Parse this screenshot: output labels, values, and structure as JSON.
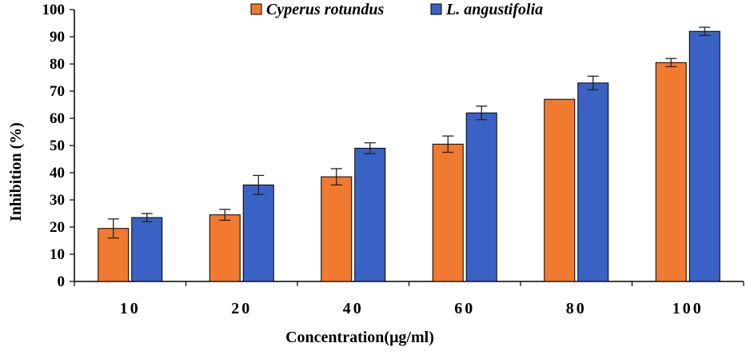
{
  "chart_data": {
    "type": "bar",
    "title": "",
    "xlabel": "Concentration(μg/ml)",
    "ylabel": "Inhibition  (%)",
    "ylim": [
      0,
      100
    ],
    "yticks": [
      0,
      10,
      20,
      30,
      40,
      50,
      60,
      70,
      80,
      90,
      100
    ],
    "categories": [
      "10",
      "20",
      "40",
      "60",
      "80",
      "100"
    ],
    "grid": false,
    "legend_position": "top",
    "series": [
      {
        "name": "Cyperus rotundus",
        "color": "#f07a30",
        "values": [
          19.5,
          24.5,
          38.5,
          50.5,
          67,
          80.5
        ],
        "errors": [
          3.5,
          2,
          3,
          3,
          0,
          1.5
        ]
      },
      {
        "name": "L. angustifolia",
        "color": "#3a62c4",
        "values": [
          23.5,
          35.5,
          49,
          62,
          73,
          92
        ],
        "errors": [
          1.5,
          3.5,
          2,
          2.5,
          2.5,
          1.5
        ]
      }
    ]
  }
}
